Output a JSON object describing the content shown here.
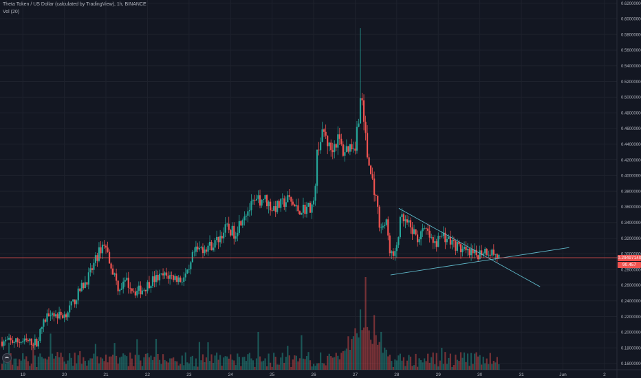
{
  "header": {
    "title": "Theta Token / US Dollar (calculated by TradingView), 1h, BINANCE",
    "volume_label": "Vol (20)"
  },
  "price_badge": {
    "value": "0.29497140",
    "color": "#ef5350"
  },
  "volume_badge": {
    "value": "90.457",
    "color": "#ef5350"
  },
  "colors": {
    "background": "#131722",
    "grid": "#1e222d",
    "up": "#26a69a",
    "down": "#ef5350",
    "trendline": "#5fb8c9",
    "axis_text": "#b2b5be"
  },
  "icons": [
    "tradingview-logo-icon"
  ],
  "chart_data": {
    "type": "candlestick",
    "instrument": "Theta Token / US Dollar",
    "interval": "1h",
    "exchange": "BINANCE",
    "x_ticks": [
      "19",
      "20",
      "21",
      "22",
      "23",
      "24",
      "25",
      "26",
      "27",
      "28",
      "29",
      "30",
      "31",
      "Jun",
      "2"
    ],
    "x_tick_days": [
      19,
      20,
      21,
      22,
      23,
      24,
      25,
      26,
      27,
      28,
      29,
      30,
      31,
      32,
      33
    ],
    "xlim": [
      18.45,
      33.3
    ],
    "y_ticks": [
      "0.62000000",
      "0.60000000",
      "0.58000000",
      "0.56000000",
      "0.54000000",
      "0.52000000",
      "0.50000000",
      "0.48000000",
      "0.46000000",
      "0.44000000",
      "0.42000000",
      "0.40000000",
      "0.38000000",
      "0.36000000",
      "0.34000000",
      "0.32000000",
      "0.30000000",
      "0.28000000",
      "0.26000000",
      "0.24000000",
      "0.22000000",
      "0.20000000",
      "0.18000000",
      "0.16000000"
    ],
    "ylim": [
      0.152,
      0.624
    ],
    "last_price": 0.2949714,
    "price_path_days": [
      18.5,
      19.0,
      19.35,
      19.45,
      19.65,
      19.8,
      20.0,
      20.2,
      20.4,
      20.6,
      20.8,
      20.95,
      21.1,
      21.3,
      21.5,
      21.7,
      21.9,
      22.1,
      22.4,
      22.6,
      22.8,
      23.0,
      23.1,
      23.3,
      23.6,
      23.9,
      24.1,
      24.3,
      24.6,
      24.8,
      25.0,
      25.2,
      25.4,
      25.6,
      25.8,
      26.0,
      26.1,
      26.25,
      26.4,
      26.6,
      26.7,
      26.85,
      27.0,
      27.15,
      27.3,
      27.45,
      27.6,
      27.75,
      27.85,
      27.95,
      28.1,
      28.3,
      28.5,
      28.7,
      28.9,
      29.1,
      29.3,
      29.5,
      29.7,
      29.9,
      30.1,
      30.3,
      30.45
    ],
    "price_path_values": [
      0.188,
      0.188,
      0.187,
      0.206,
      0.228,
      0.221,
      0.222,
      0.236,
      0.256,
      0.272,
      0.298,
      0.315,
      0.29,
      0.256,
      0.264,
      0.252,
      0.255,
      0.266,
      0.272,
      0.271,
      0.267,
      0.275,
      0.3,
      0.307,
      0.312,
      0.333,
      0.326,
      0.35,
      0.365,
      0.372,
      0.358,
      0.362,
      0.37,
      0.356,
      0.358,
      0.362,
      0.438,
      0.455,
      0.432,
      0.448,
      0.43,
      0.437,
      0.44,
      0.505,
      0.42,
      0.385,
      0.335,
      0.338,
      0.3,
      0.295,
      0.345,
      0.335,
      0.32,
      0.33,
      0.31,
      0.325,
      0.315,
      0.308,
      0.3,
      0.298,
      0.305,
      0.302,
      0.295
    ],
    "spike_high": {
      "day": 27.13,
      "value": 0.588
    },
    "volume_peak_day": 27.25,
    "trendlines": [
      {
        "name": "upper-trendline",
        "x1": 28.05,
        "y1": 0.358,
        "x2": 31.45,
        "y2": 0.258
      },
      {
        "name": "lower-trendline",
        "x1": 27.85,
        "y1": 0.273,
        "x2": 32.15,
        "y2": 0.308
      }
    ]
  }
}
